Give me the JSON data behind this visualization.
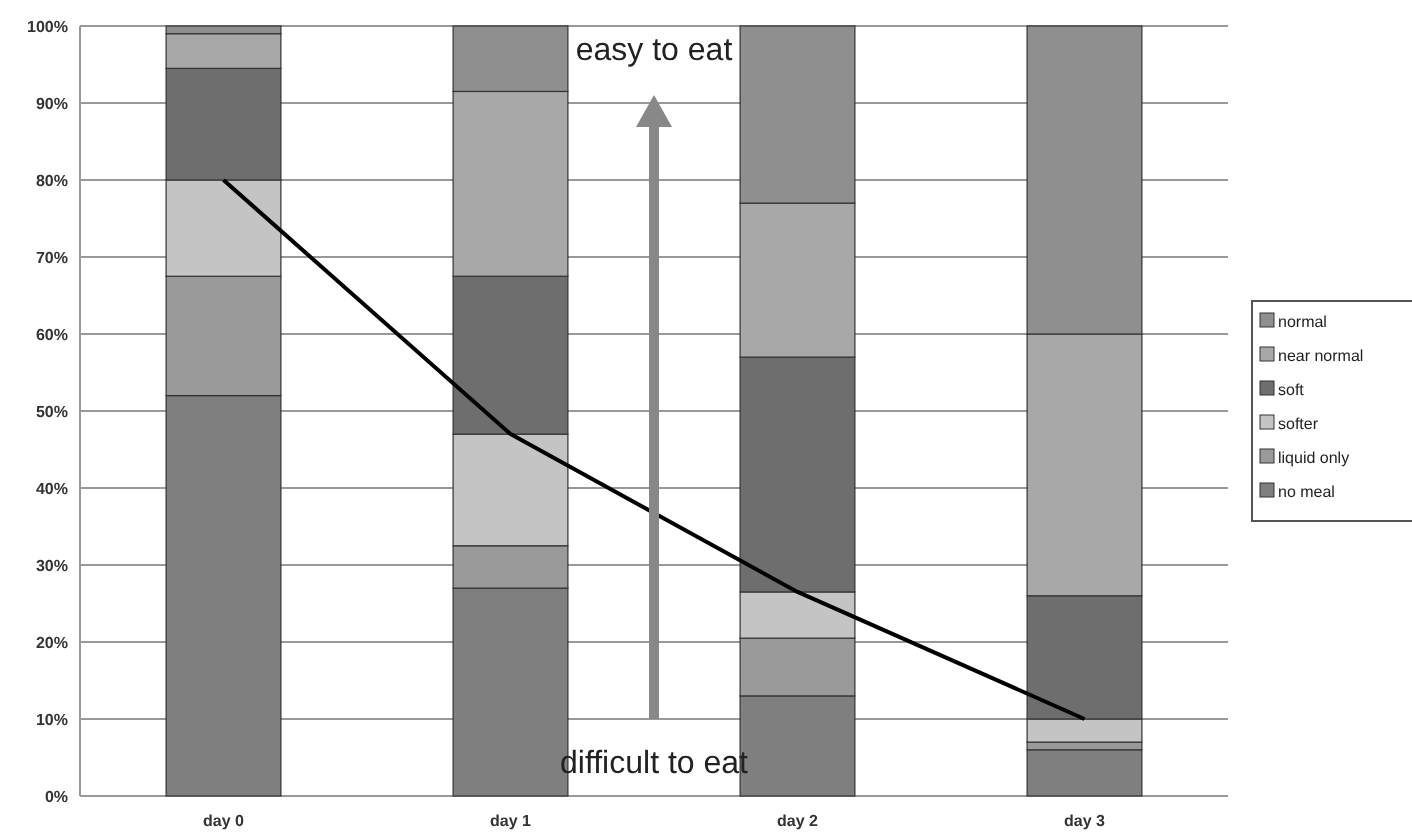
{
  "chart_data": {
    "type": "bar",
    "stacked": true,
    "categories": [
      "day 0",
      "day 1",
      "day 2",
      "day 3"
    ],
    "series": [
      {
        "name": "no meal",
        "color": "#7f7f7f",
        "values": [
          52,
          27,
          13,
          6
        ]
      },
      {
        "name": "liquid only",
        "color": "#9a9a9a",
        "values": [
          15.5,
          5.5,
          7.5,
          1
        ]
      },
      {
        "name": "softer",
        "color": "#c4c4c4",
        "values": [
          12.5,
          14.5,
          6,
          3
        ]
      },
      {
        "name": "soft",
        "color": "#6e6e6e",
        "values": [
          14.5,
          20.5,
          30.5,
          16
        ]
      },
      {
        "name": "near normal",
        "color": "#a8a8a8",
        "values": [
          4.5,
          24,
          20,
          34
        ]
      },
      {
        "name": "normal",
        "color": "#8f8f8f",
        "values": [
          1,
          8.5,
          23,
          40
        ]
      },
      {
        "type": "line",
        "color": "#000000",
        "values": [
          80,
          47,
          26.5,
          10
        ]
      }
    ],
    "ylim": [
      0,
      100
    ],
    "yticks": [
      {
        "value": 0,
        "label": "0%"
      },
      {
        "value": 10,
        "label": "10%"
      },
      {
        "value": 20,
        "label": "20%"
      },
      {
        "value": 30,
        "label": "30%"
      },
      {
        "value": 40,
        "label": "40%"
      },
      {
        "value": 50,
        "label": "50%"
      },
      {
        "value": 60,
        "label": "60%"
      },
      {
        "value": 70,
        "label": "70%"
      },
      {
        "value": 80,
        "label": "80%"
      },
      {
        "value": 90,
        "label": "90%"
      },
      {
        "value": 100,
        "label": "100%"
      }
    ],
    "grid": "y",
    "legend": "right",
    "annotations": [
      "easy to eat",
      "difficult to eat"
    ]
  }
}
